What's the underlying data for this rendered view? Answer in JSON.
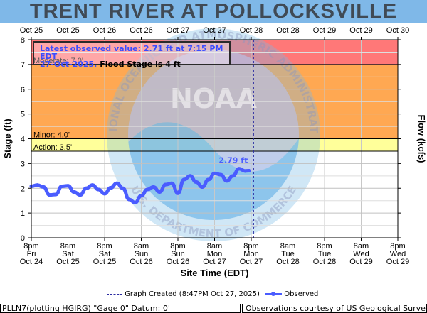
{
  "title": "TRENT RIVER AT POLLOCKSVILLE",
  "top_ticks": [
    "Oct 25",
    "Oct 25",
    "Oct 26",
    "Oct 26",
    "Oct 27",
    "Oct 27",
    "Oct 28",
    "Oct 28",
    "Oct 29",
    "Oct 29",
    "Oct 30"
  ],
  "bottom_ticks": [
    {
      "time": "8pm",
      "day": "Fri",
      "date": "Oct 24"
    },
    {
      "time": "8am",
      "day": "Sat",
      "date": "Oct 25"
    },
    {
      "time": "8pm",
      "day": "Sat",
      "date": "Oct 25"
    },
    {
      "time": "8am",
      "day": "Sun",
      "date": "Oct 26"
    },
    {
      "time": "8pm",
      "day": "Sun",
      "date": "Oct 26"
    },
    {
      "time": "8am",
      "day": "Mon",
      "date": "Oct 27"
    },
    {
      "time": "8pm",
      "day": "Mon",
      "date": "Oct 27"
    },
    {
      "time": "8am",
      "day": "Tue",
      "date": "Oct 28"
    },
    {
      "time": "8pm",
      "day": "Tue",
      "date": "Oct 28"
    },
    {
      "time": "8am",
      "day": "Wed",
      "date": "Oct 29"
    },
    {
      "time": "8pm",
      "day": "Wed",
      "date": "Oct 29"
    }
  ],
  "y_axis_label": "Stage (ft)",
  "y2_axis_label": "Flow (kcfs)",
  "x_axis_label": "Site Time (EDT)",
  "latest": {
    "line1": "Latest observed value: 2.71 ft at 7:15 PM EDT",
    "date": "27-Oct-2025.",
    "flood": "Flood Stage is 4 ft"
  },
  "peak_label": "2.79 ft",
  "watermark": {
    "logo_text": "NOAA",
    "top_arc": "NATIONAL OCEANIC AND ATMOSPHERIC ADMINISTRATION",
    "bottom_arc": "U.S. DEPARTMENT OF COMMERCE"
  },
  "legend": {
    "created": "Graph Created (8:47PM Oct 27, 2025)",
    "observed": "Observed"
  },
  "footer": {
    "left": "PLLN7(plotting HGIRG) \"Gage 0\" Datum: 0'",
    "right": "Observations courtesy of US Geological Survey"
  },
  "colors": {
    "title_bar": "#7fb8e8",
    "moderate": "#ff7878",
    "minor": "#ffa852",
    "action": "#ffff9a",
    "observed": "#4a5cff",
    "created_line": "#2a2aa0"
  },
  "chart_data": {
    "type": "line",
    "title": "TRENT RIVER AT POLLOCKSVILLE",
    "xlabel": "Site Time (EDT)",
    "ylabel": "Stage (ft)",
    "y2label": "Flow (kcfs)",
    "ylim": [
      0,
      8
    ],
    "xlim": [
      "2025-10-24 20:00",
      "2025-10-29 20:00"
    ],
    "y_ticks": [
      0,
      1,
      2,
      3,
      4,
      5,
      6,
      7,
      8
    ],
    "thresholds": [
      {
        "name": "Moderate",
        "label": "Moderate: 7.0'",
        "value": 7.0
      },
      {
        "name": "Minor",
        "label": "Minor: 4.0'",
        "value": 4.0
      },
      {
        "name": "Action",
        "label": "Action: 3.5'",
        "value": 3.5
      }
    ],
    "graph_created": "2025-10-27 20:47",
    "series": [
      {
        "name": "Observed",
        "x": [
          "2025-10-24 20:00",
          "2025-10-24 22:00",
          "2025-10-25 00:00",
          "2025-10-25 02:00",
          "2025-10-25 04:00",
          "2025-10-25 06:00",
          "2025-10-25 08:00",
          "2025-10-25 10:00",
          "2025-10-25 12:00",
          "2025-10-25 14:00",
          "2025-10-25 16:00",
          "2025-10-25 18:00",
          "2025-10-25 20:00",
          "2025-10-25 22:00",
          "2025-10-26 00:00",
          "2025-10-26 02:00",
          "2025-10-26 04:00",
          "2025-10-26 06:00",
          "2025-10-26 08:00",
          "2025-10-26 10:00",
          "2025-10-26 12:00",
          "2025-10-26 14:00",
          "2025-10-26 16:00",
          "2025-10-26 18:00",
          "2025-10-26 20:00",
          "2025-10-26 22:00",
          "2025-10-27 00:00",
          "2025-10-27 02:00",
          "2025-10-27 04:00",
          "2025-10-27 06:00",
          "2025-10-27 08:00",
          "2025-10-27 10:00",
          "2025-10-27 12:00",
          "2025-10-27 14:00",
          "2025-10-27 16:00",
          "2025-10-27 18:00",
          "2025-10-27 19:15"
        ],
        "y": [
          2.08,
          2.13,
          2.05,
          1.73,
          1.75,
          2.08,
          2.1,
          1.85,
          1.73,
          2.0,
          2.13,
          1.95,
          1.78,
          2.02,
          2.2,
          2.0,
          1.55,
          1.42,
          1.7,
          1.95,
          2.05,
          1.85,
          2.15,
          2.2,
          1.8,
          2.35,
          2.5,
          2.25,
          2.05,
          2.35,
          2.6,
          2.55,
          2.3,
          2.5,
          2.79,
          2.7,
          2.71
        ]
      }
    ]
  }
}
